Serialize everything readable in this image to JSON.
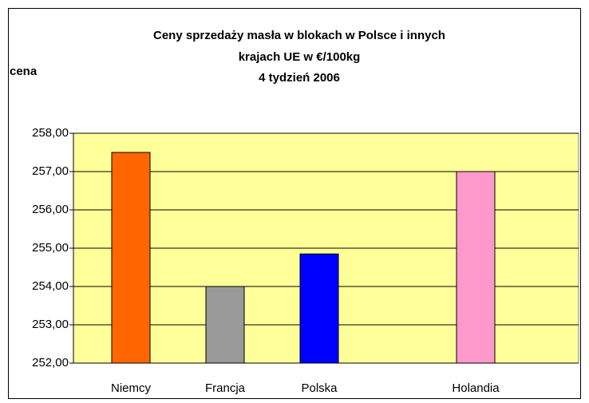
{
  "chart_data": {
    "type": "bar",
    "title": [
      "Ceny sprzedaży masła w blokach w Polsce i  innych",
      "krajach UE w €/100kg",
      "4 tydzień 2006"
    ],
    "y_label": "cena",
    "categories": [
      "Niemcy",
      "Francja",
      "Polska",
      "Holandia"
    ],
    "values": [
      257.5,
      254.0,
      254.85,
      257.0
    ],
    "colors": [
      "#ff6600",
      "#999999",
      "#0000ff",
      "#ff99cc"
    ],
    "ylim": [
      252,
      258
    ],
    "yticks": [
      {
        "value": 252,
        "label": "252,00"
      },
      {
        "value": 253,
        "label": "253,00"
      },
      {
        "value": 254,
        "label": "254,00"
      },
      {
        "value": 255,
        "label": "255,00"
      },
      {
        "value": 256,
        "label": "256,00"
      },
      {
        "value": 257,
        "label": "257,00"
      },
      {
        "value": 258,
        "label": "258,00"
      }
    ],
    "grid": true
  }
}
